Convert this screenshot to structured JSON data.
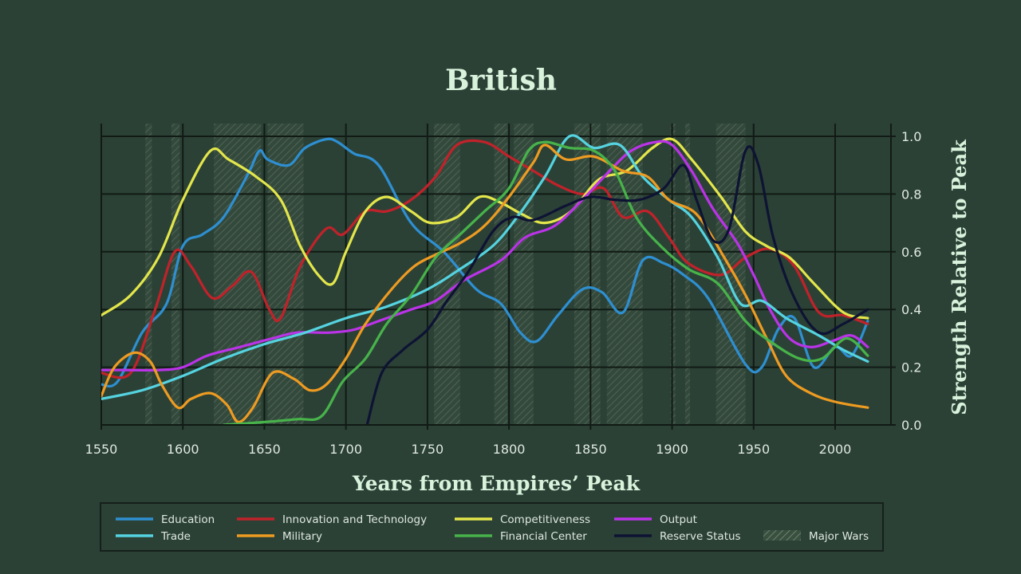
{
  "chart_data": {
    "type": "line",
    "title": "British",
    "xlabel": "Years from Empires’ Peak",
    "ylabel": "Strength Relative to Peak",
    "xlim": [
      1550,
      2025
    ],
    "ylim": [
      0,
      1.0
    ],
    "xticks": [
      1550,
      1600,
      1650,
      1700,
      1750,
      1800,
      1850,
      1900,
      1950,
      2000
    ],
    "yticks": [
      "0.0",
      "0.2",
      "0.4",
      "0.6",
      "0.8",
      "1.0"
    ],
    "grid": true,
    "legend_position": "bottom",
    "major_wars": [
      [
        1577,
        1581
      ],
      [
        1593,
        1598
      ],
      [
        1619,
        1648
      ],
      [
        1652,
        1674
      ],
      [
        1754,
        1770
      ],
      [
        1791,
        1799
      ],
      [
        1803,
        1815
      ],
      [
        1840,
        1856
      ],
      [
        1860,
        1882
      ],
      [
        1899,
        1902
      ],
      [
        1908,
        1911
      ],
      [
        1927,
        1945
      ]
    ],
    "major_wars_label": "Major Wars",
    "series": [
      {
        "name": "Education",
        "color": "#2e8fd1",
        "x": [
          1550,
          1560,
          1575,
          1590,
          1600,
          1612,
          1625,
          1640,
          1647,
          1652,
          1665,
          1675,
          1688,
          1695,
          1705,
          1720,
          1740,
          1760,
          1780,
          1795,
          1807,
          1817,
          1830,
          1845,
          1857,
          1870,
          1882,
          1895,
          1907,
          1922,
          1945,
          1955,
          1965,
          1975,
          1987,
          2000,
          2010,
          2020
        ],
        "y": [
          0.14,
          0.15,
          0.32,
          0.42,
          0.62,
          0.66,
          0.72,
          0.87,
          0.95,
          0.92,
          0.9,
          0.96,
          0.99,
          0.98,
          0.94,
          0.9,
          0.7,
          0.6,
          0.47,
          0.42,
          0.32,
          0.29,
          0.38,
          0.47,
          0.46,
          0.39,
          0.57,
          0.56,
          0.52,
          0.44,
          0.21,
          0.2,
          0.33,
          0.37,
          0.2,
          0.27,
          0.24,
          0.36
        ]
      },
      {
        "name": "Innovation and Technology",
        "color": "#c1222a",
        "x": [
          1550,
          1568,
          1583,
          1595,
          1605,
          1618,
          1630,
          1642,
          1653,
          1660,
          1672,
          1688,
          1698,
          1712,
          1725,
          1740,
          1755,
          1768,
          1785,
          1800,
          1815,
          1830,
          1845,
          1858,
          1870,
          1885,
          1898,
          1910,
          1930,
          1945,
          1960,
          1975,
          1990,
          2005,
          2020
        ],
        "y": [
          0.18,
          0.18,
          0.4,
          0.6,
          0.55,
          0.44,
          0.48,
          0.53,
          0.4,
          0.37,
          0.55,
          0.68,
          0.66,
          0.74,
          0.74,
          0.78,
          0.86,
          0.97,
          0.98,
          0.93,
          0.88,
          0.83,
          0.8,
          0.82,
          0.72,
          0.74,
          0.65,
          0.56,
          0.52,
          0.58,
          0.61,
          0.55,
          0.39,
          0.38,
          0.35
        ]
      },
      {
        "name": "Competitiveness",
        "color": "#e3e64a",
        "x": [
          1550,
          1568,
          1585,
          1600,
          1617,
          1628,
          1645,
          1660,
          1672,
          1683,
          1692,
          1700,
          1712,
          1725,
          1740,
          1752,
          1768,
          1782,
          1795,
          1808,
          1822,
          1838,
          1855,
          1872,
          1888,
          1900,
          1912,
          1930,
          1945,
          1958,
          1972,
          1987,
          2005,
          2020
        ],
        "y": [
          0.38,
          0.45,
          0.58,
          0.78,
          0.95,
          0.92,
          0.86,
          0.78,
          0.62,
          0.52,
          0.49,
          0.6,
          0.74,
          0.79,
          0.74,
          0.7,
          0.72,
          0.79,
          0.77,
          0.73,
          0.7,
          0.74,
          0.85,
          0.88,
          0.96,
          0.99,
          0.92,
          0.79,
          0.67,
          0.62,
          0.58,
          0.49,
          0.39,
          0.37
        ]
      },
      {
        "name": "Output",
        "color": "#bb33e8",
        "x": [
          1550,
          1565,
          1585,
          1600,
          1615,
          1635,
          1655,
          1670,
          1690,
          1705,
          1720,
          1740,
          1755,
          1772,
          1795,
          1810,
          1828,
          1845,
          1860,
          1875,
          1890,
          1900,
          1912,
          1925,
          1940,
          1950,
          1960,
          1972,
          1985,
          1998,
          2010,
          2020
        ],
        "y": [
          0.19,
          0.19,
          0.19,
          0.2,
          0.24,
          0.27,
          0.3,
          0.32,
          0.32,
          0.33,
          0.36,
          0.4,
          0.43,
          0.5,
          0.57,
          0.65,
          0.69,
          0.78,
          0.87,
          0.95,
          0.98,
          0.97,
          0.88,
          0.75,
          0.63,
          0.52,
          0.4,
          0.3,
          0.27,
          0.29,
          0.31,
          0.27
        ]
      },
      {
        "name": "Trade",
        "color": "#55d3e0",
        "x": [
          1550,
          1575,
          1600,
          1625,
          1650,
          1675,
          1700,
          1725,
          1750,
          1770,
          1790,
          1805,
          1822,
          1837,
          1852,
          1868,
          1882,
          1898,
          1912,
          1928,
          1942,
          1955,
          1970,
          1990,
          2005,
          2020
        ],
        "y": [
          0.09,
          0.12,
          0.17,
          0.23,
          0.28,
          0.32,
          0.37,
          0.41,
          0.47,
          0.54,
          0.62,
          0.72,
          0.86,
          1.0,
          0.96,
          0.97,
          0.86,
          0.78,
          0.72,
          0.58,
          0.42,
          0.43,
          0.37,
          0.31,
          0.26,
          0.22
        ]
      },
      {
        "name": "Military",
        "color": "#ee9b21",
        "x": [
          1550,
          1558,
          1570,
          1580,
          1587,
          1597,
          1605,
          1617,
          1627,
          1634,
          1643,
          1655,
          1668,
          1678,
          1688,
          1700,
          1712,
          1728,
          1742,
          1755,
          1770,
          1785,
          1800,
          1815,
          1822,
          1835,
          1852,
          1870,
          1885,
          1898,
          1915,
          1932,
          1945,
          1958,
          1970,
          1985,
          2000,
          2020
        ],
        "y": [
          0.1,
          0.2,
          0.25,
          0.22,
          0.14,
          0.06,
          0.09,
          0.11,
          0.07,
          0.01,
          0.06,
          0.18,
          0.16,
          0.12,
          0.14,
          0.23,
          0.35,
          0.47,
          0.55,
          0.59,
          0.63,
          0.69,
          0.79,
          0.91,
          0.97,
          0.92,
          0.93,
          0.88,
          0.86,
          0.78,
          0.73,
          0.58,
          0.45,
          0.3,
          0.17,
          0.11,
          0.08,
          0.06
        ]
      },
      {
        "name": "Financial Center",
        "color": "#47b34a",
        "x": [
          1625,
          1650,
          1670,
          1685,
          1698,
          1712,
          1725,
          1740,
          1755,
          1770,
          1785,
          1800,
          1812,
          1822,
          1837,
          1852,
          1865,
          1878,
          1893,
          1910,
          1928,
          1945,
          1960,
          1978,
          1992,
          2007,
          2020
        ],
        "y": [
          0.0,
          0.01,
          0.02,
          0.03,
          0.15,
          0.23,
          0.35,
          0.45,
          0.58,
          0.66,
          0.74,
          0.82,
          0.95,
          0.98,
          0.96,
          0.95,
          0.88,
          0.72,
          0.62,
          0.54,
          0.49,
          0.36,
          0.29,
          0.23,
          0.23,
          0.3,
          0.24
        ]
      },
      {
        "name": "Reserve Status",
        "color": "#0e1333",
        "x": [
          1713,
          1722,
          1735,
          1750,
          1762,
          1775,
          1790,
          1802,
          1815,
          1835,
          1850,
          1865,
          1880,
          1895,
          1907,
          1915,
          1925,
          1935,
          1945,
          1953,
          1962,
          1975,
          1990,
          2005,
          2020
        ],
        "y": [
          0.0,
          0.18,
          0.26,
          0.33,
          0.43,
          0.53,
          0.67,
          0.72,
          0.71,
          0.76,
          0.79,
          0.78,
          0.78,
          0.82,
          0.9,
          0.78,
          0.64,
          0.68,
          0.95,
          0.9,
          0.65,
          0.44,
          0.32,
          0.35,
          0.4
        ]
      }
    ]
  }
}
